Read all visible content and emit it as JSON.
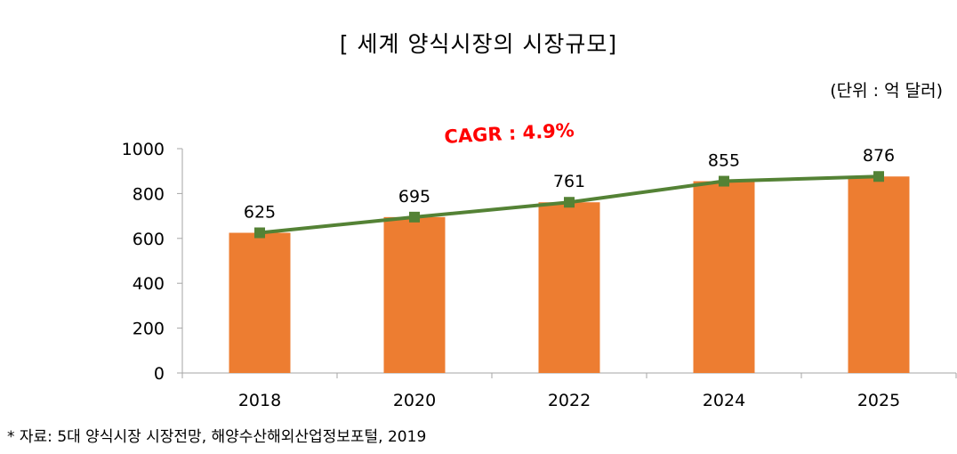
{
  "chart_data": {
    "type": "bar",
    "title": "[ 세계 양식시장의 시장규모]",
    "unit_label": "(단위 : 억 달러)",
    "annotation": "CAGR : 4.9%",
    "source": "* 자료: 5대 양식시장 시장전망, 해양수산해외산업정보포털, 2019",
    "categories": [
      "2018",
      "2020",
      "2022",
      "2024",
      "2025"
    ],
    "values": [
      625,
      695,
      761,
      855,
      876
    ],
    "data_labels": [
      "625",
      "695",
      "761",
      "855",
      "876"
    ],
    "y_ticks": [
      "0",
      "200",
      "400",
      "600",
      "800",
      "1000"
    ],
    "ylim": [
      0,
      1000
    ],
    "overlay_line": true,
    "grid": false,
    "colors": {
      "bar": "#ED7D31",
      "line": "#548235",
      "marker": "#548235",
      "annotation": "#FF0000",
      "axis": "#A6A6A6"
    }
  }
}
